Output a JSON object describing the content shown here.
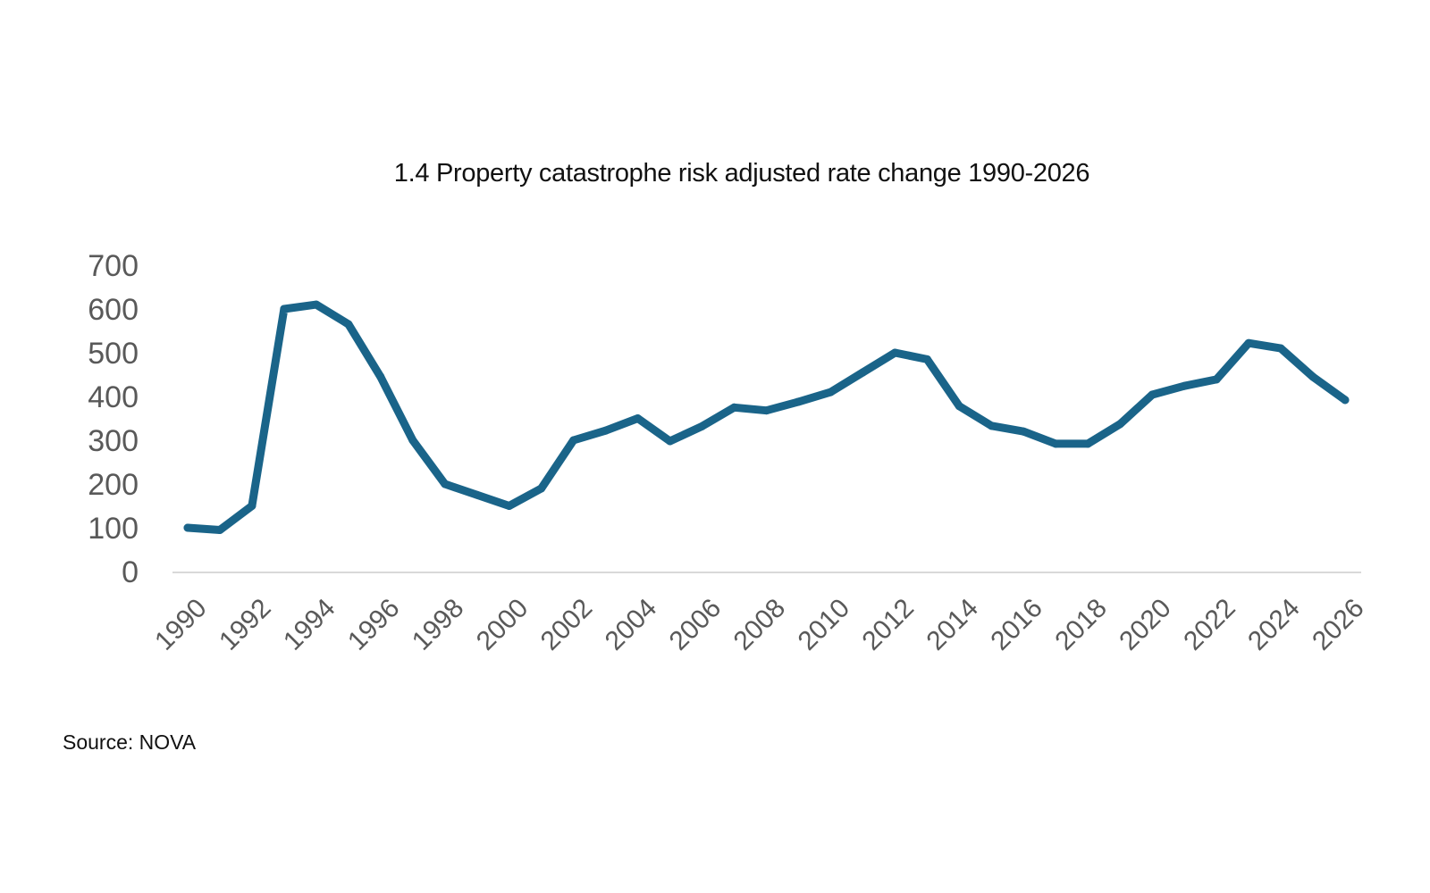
{
  "chart_data": {
    "type": "line",
    "title": "1.4 Property catastrophe risk adjusted rate change 1990-2026",
    "xlabel": "",
    "ylabel": "",
    "ylim": [
      0,
      700
    ],
    "yticks": [
      0,
      100,
      200,
      300,
      400,
      500,
      600,
      700
    ],
    "xtick_labels": [
      "1990",
      "1992",
      "1994",
      "1996",
      "1998",
      "2000",
      "2002",
      "2004",
      "2006",
      "2008",
      "2010",
      "2012",
      "2014",
      "2016",
      "2018",
      "2020",
      "2022",
      "2024",
      "2026"
    ],
    "grid": false,
    "legend": null,
    "x": [
      1990,
      1991,
      1992,
      1993,
      1994,
      1995,
      1996,
      1997,
      1998,
      1999,
      2000,
      2001,
      2002,
      2003,
      2004,
      2005,
      2006,
      2007,
      2008,
      2009,
      2010,
      2011,
      2012,
      2013,
      2014,
      2015,
      2016,
      2017,
      2018,
      2019,
      2020,
      2021,
      2022,
      2023,
      2024,
      2025,
      2026
    ],
    "series": [
      {
        "name": "Property catastrophe risk adjusted rate change",
        "color": "#1a6489",
        "values": [
          100,
          95,
          150,
          600,
          610,
          565,
          445,
          300,
          200,
          175,
          150,
          190,
          300,
          322,
          350,
          298,
          332,
          375,
          368,
          388,
          410,
          455,
          500,
          485,
          378,
          333,
          320,
          292,
          292,
          337,
          404,
          424,
          439,
          522,
          510,
          445,
          392
        ]
      }
    ]
  },
  "footer": {
    "source": "Source: NOVA"
  }
}
